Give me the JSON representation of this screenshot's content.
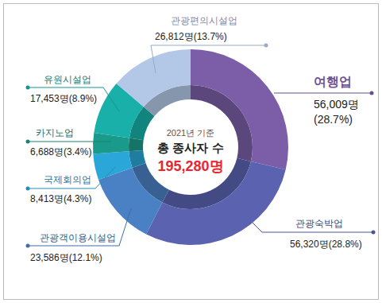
{
  "chart_data": {
    "type": "pie",
    "categories": [
      "여행업",
      "관광숙박업",
      "관광객이용시설업",
      "국제회의업",
      "카지노업",
      "유원시설업",
      "관광편의시설업"
    ],
    "values": [
      56009,
      56320,
      23586,
      8413,
      6688,
      17453,
      26812
    ],
    "value_labels": [
      "56,009명 (28.7%)",
      "56,320명(28.8%)",
      "23,586명(12.1%)",
      "8,413명(4.3%)",
      "6,688명(3.4%)",
      "17,453명(8.9%)",
      "26,812명(13.7%)"
    ],
    "colors": [
      "#7b5ea7",
      "#5b63b0",
      "#4a80c4",
      "#2aa7d8",
      "#1a9a8a",
      "#18b0a8",
      "#b3c8e6"
    ],
    "annotations": [
      "2021년 기준",
      "총 종사자 수",
      "195,280명"
    ],
    "data_labels": true
  }
}
